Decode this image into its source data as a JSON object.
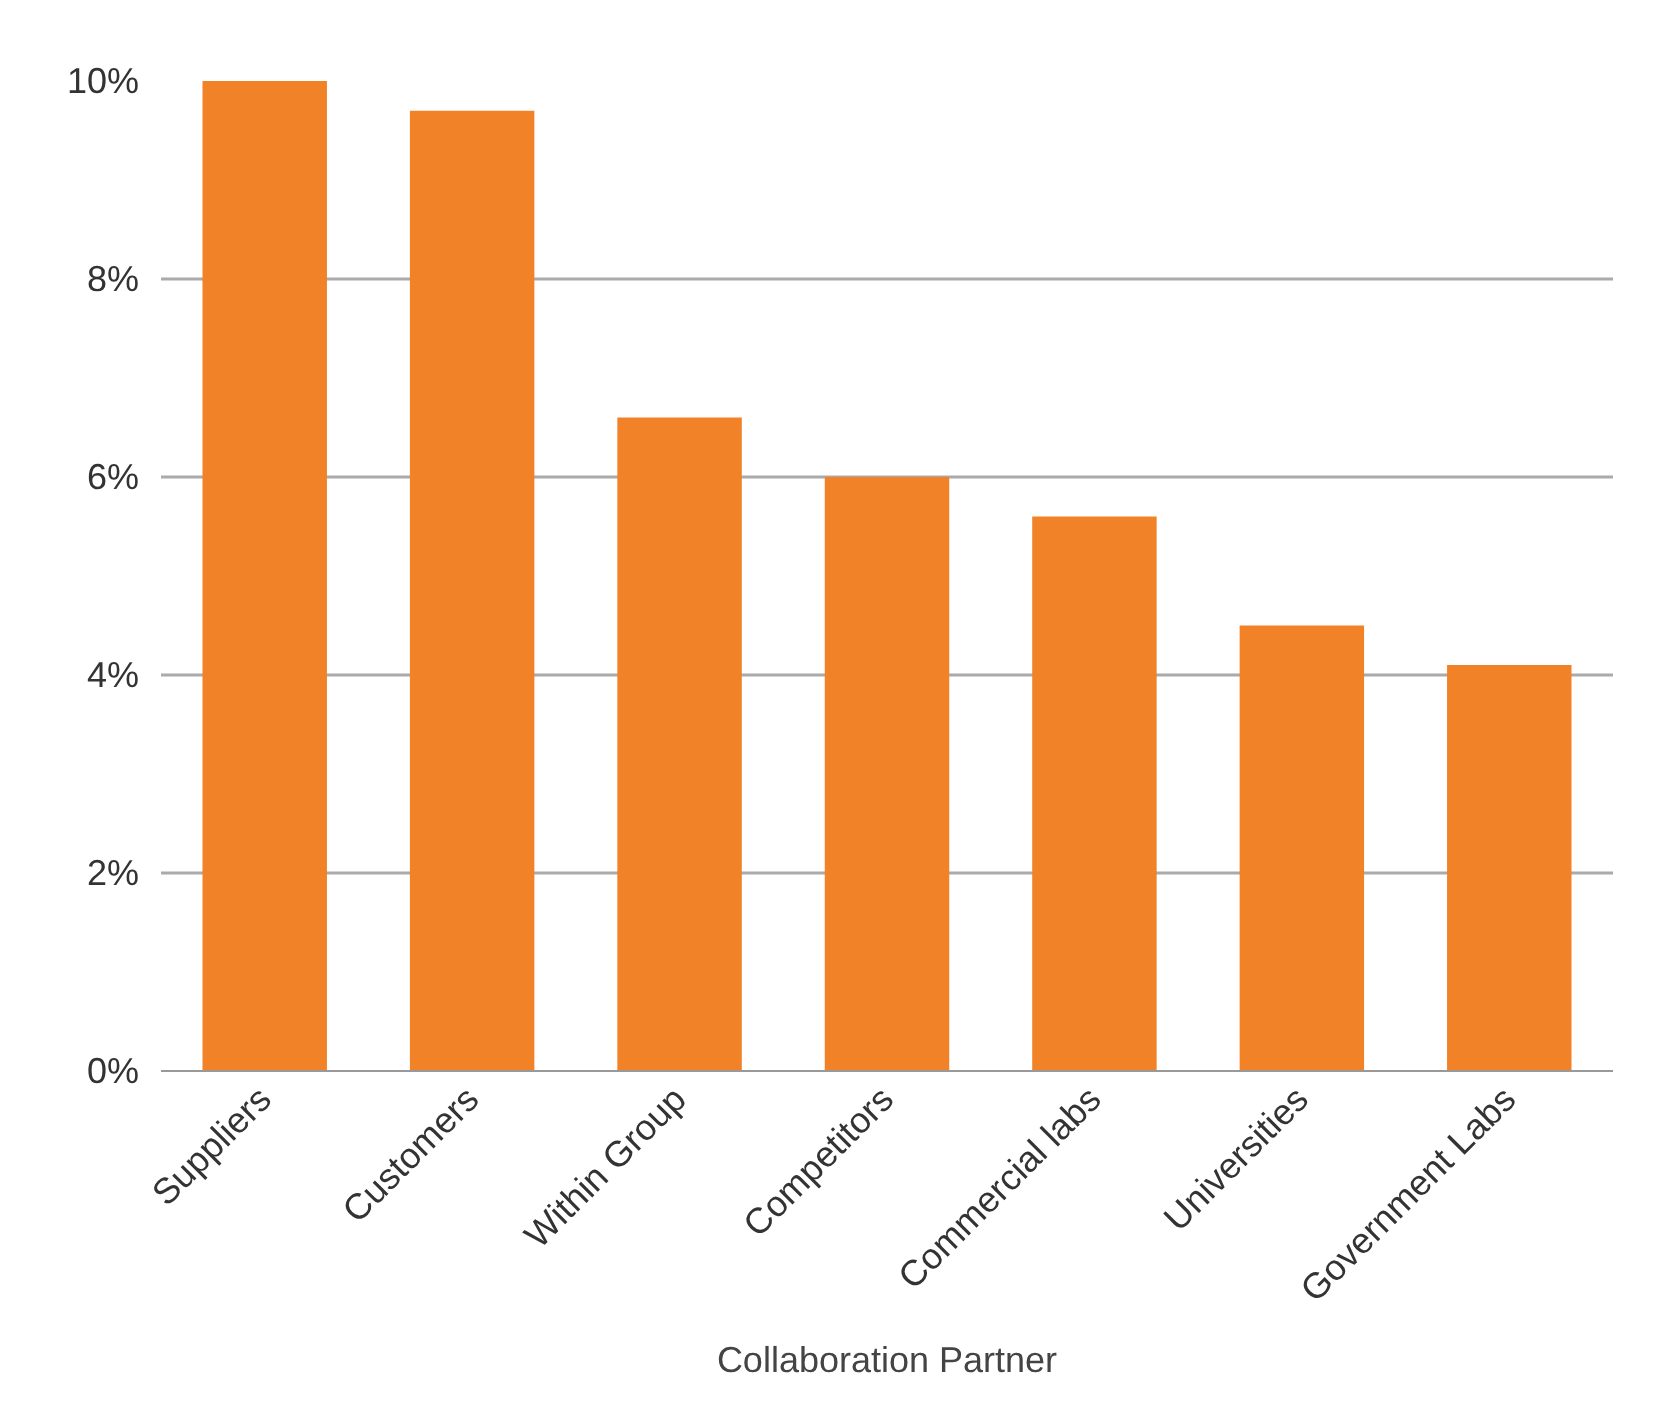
{
  "chart_data": {
    "type": "bar",
    "xlabel": "Collaboration Partner",
    "categories": [
      "Suppliers",
      "Customers",
      "Within Group",
      "Competitors",
      "Commercial labs",
      "Universities",
      "Government Labs"
    ],
    "values": [
      10.0,
      9.7,
      6.6,
      6.0,
      5.6,
      4.5,
      4.1
    ],
    "color": "#f28228",
    "ylim": [
      0,
      10
    ],
    "yticks": [
      {
        "value": 0,
        "label": "0%"
      },
      {
        "value": 2,
        "label": "2%"
      },
      {
        "value": 4,
        "label": "4%"
      },
      {
        "value": 6,
        "label": "6%"
      },
      {
        "value": 8,
        "label": "8%"
      },
      {
        "value": 10,
        "label": "10%"
      }
    ],
    "grid": "y"
  }
}
